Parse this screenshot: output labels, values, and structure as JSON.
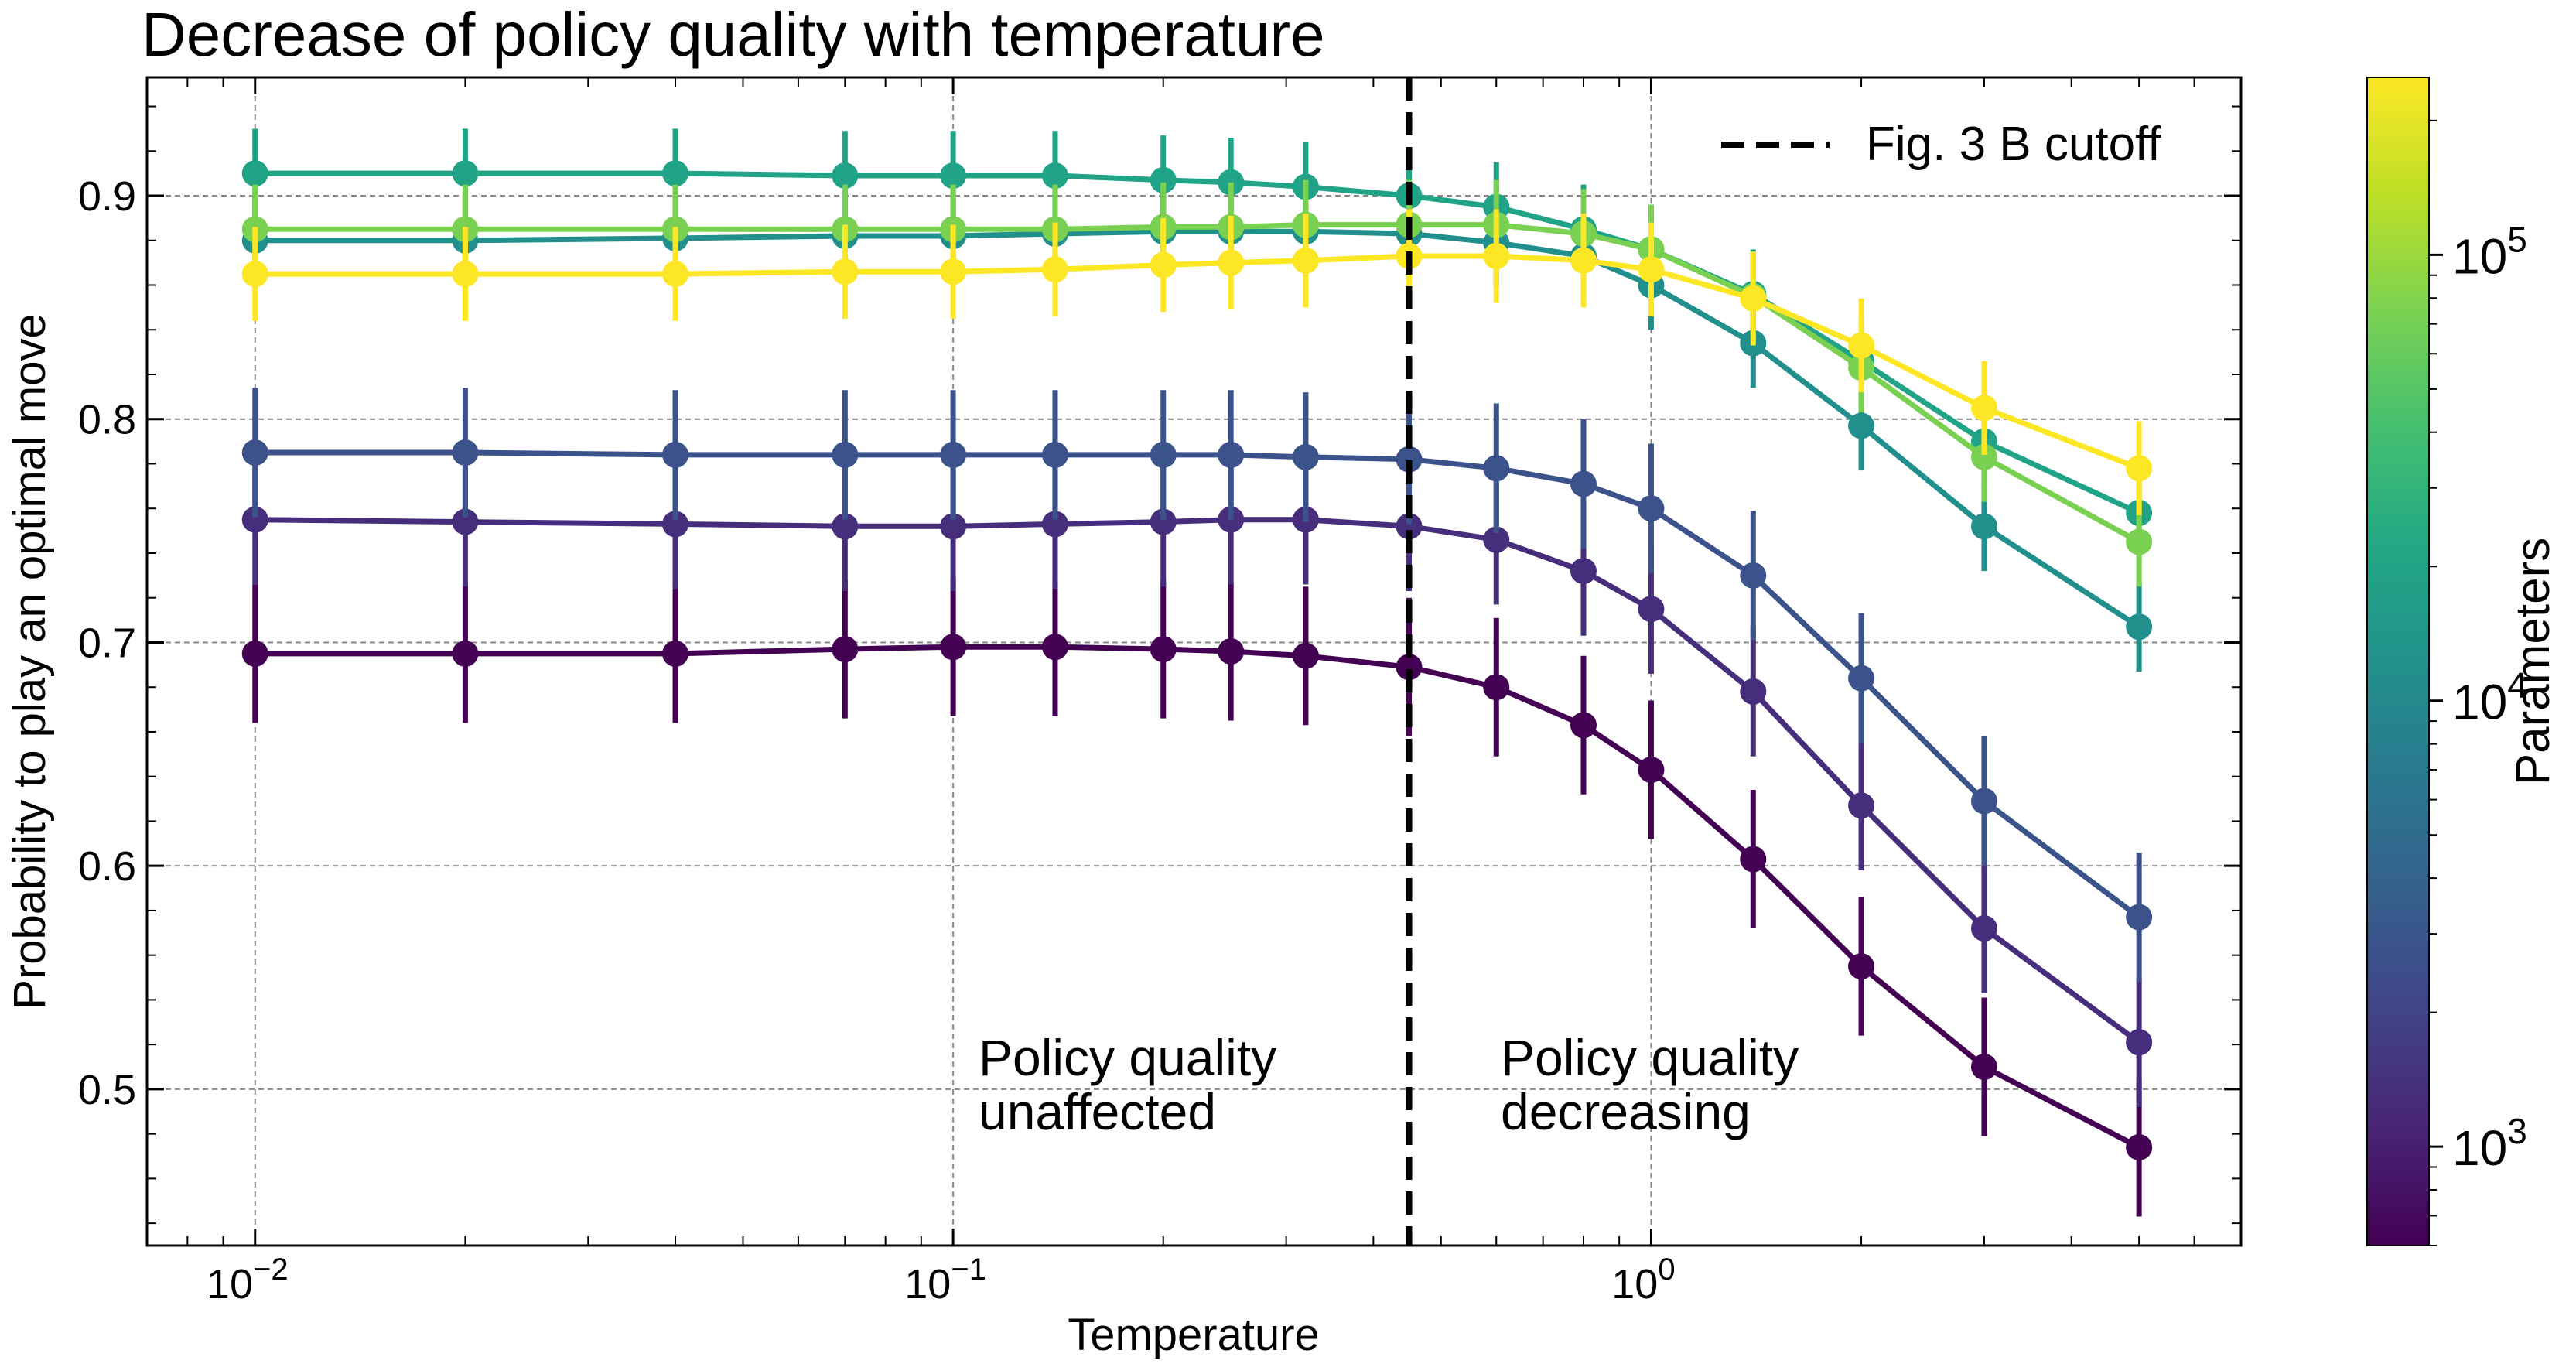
{
  "chart_data": {
    "type": "line",
    "title": "Decrease of policy quality with temperature",
    "xlabel": "Temperature",
    "ylabel": "Probability to play an optimal move",
    "xscale": "log",
    "xlim": [
      0.007,
      7
    ],
    "ylim": [
      0.43,
      0.953
    ],
    "grid": true,
    "x_tick_labels": [
      {
        "value": 0.01,
        "base": "10",
        "exp": "−2"
      },
      {
        "value": 0.1,
        "base": "10",
        "exp": "−1"
      },
      {
        "value": 1,
        "base": "10",
        "exp": "0"
      }
    ],
    "y_ticks": [
      0.5,
      0.6,
      0.7,
      0.8,
      0.9
    ],
    "y_tick_labels": [
      "0.5",
      "0.6",
      "0.7",
      "0.8",
      "0.9"
    ],
    "x": [
      0.01,
      0.02,
      0.04,
      0.07,
      0.1,
      0.14,
      0.2,
      0.25,
      0.32,
      0.45,
      0.6,
      0.8,
      1.0,
      1.4,
      2.0,
      3.0,
      5.0
    ],
    "series": [
      {
        "color": "#440154",
        "params": 600,
        "values": [
          0.695,
          0.695,
          0.695,
          0.697,
          0.698,
          0.698,
          0.697,
          0.696,
          0.694,
          0.689,
          0.68,
          0.663,
          0.643,
          0.603,
          0.555,
          0.51,
          0.474
        ],
        "err": 0.031
      },
      {
        "color": "#472e7c",
        "params": 1000,
        "values": [
          0.755,
          0.754,
          0.753,
          0.752,
          0.752,
          0.753,
          0.754,
          0.755,
          0.755,
          0.752,
          0.746,
          0.732,
          0.715,
          0.678,
          0.627,
          0.572,
          0.521
        ],
        "err": 0.029
      },
      {
        "color": "#3b528b",
        "params": 1700,
        "values": [
          0.785,
          0.785,
          0.784,
          0.784,
          0.784,
          0.784,
          0.784,
          0.784,
          0.783,
          0.782,
          0.778,
          0.771,
          0.76,
          0.73,
          0.684,
          0.629,
          0.577
        ],
        "err": 0.029
      },
      {
        "color": "#21908d",
        "params": 7000,
        "values": [
          0.88,
          0.88,
          0.881,
          0.882,
          0.882,
          0.883,
          0.884,
          0.884,
          0.884,
          0.883,
          0.879,
          0.873,
          0.86,
          0.834,
          0.797,
          0.752,
          0.707
        ],
        "err": 0.02
      },
      {
        "color": "#20a386",
        "params": 17000,
        "values": [
          0.91,
          0.91,
          0.91,
          0.909,
          0.909,
          0.909,
          0.907,
          0.906,
          0.904,
          0.9,
          0.895,
          0.885,
          0.876,
          0.856,
          0.826,
          0.79,
          0.758
        ],
        "err": 0.02
      },
      {
        "color": "#7ad151",
        "params": 70000,
        "values": [
          0.885,
          0.885,
          0.885,
          0.885,
          0.885,
          0.885,
          0.886,
          0.886,
          0.887,
          0.887,
          0.887,
          0.883,
          0.876,
          0.855,
          0.823,
          0.783,
          0.745
        ],
        "err": 0.02
      },
      {
        "color": "#fde725",
        "params": 250000,
        "values": [
          0.865,
          0.865,
          0.865,
          0.866,
          0.866,
          0.867,
          0.869,
          0.87,
          0.871,
          0.873,
          0.873,
          0.871,
          0.867,
          0.854,
          0.833,
          0.805,
          0.778
        ],
        "err": 0.021
      }
    ],
    "cutoff_line": {
      "x": 0.45,
      "label": "Fig. 3 B cutoff",
      "color": "#000000"
    },
    "legend": {
      "position": "top-right",
      "entries": [
        "Fig. 3 B cutoff"
      ]
    },
    "annotations": [
      {
        "lines": [
          "Policy quality",
          "unaffected"
        ]
      },
      {
        "lines": [
          "Policy quality",
          "decreasing"
        ]
      }
    ],
    "colorbar": {
      "label": "Parameters",
      "scale": "log",
      "range": [
        600,
        250000
      ],
      "colormap": "viridis",
      "tick_labels": [
        {
          "value": 1000,
          "base": "10",
          "exp": "3"
        },
        {
          "value": 10000,
          "base": "10",
          "exp": "4"
        },
        {
          "value": 100000,
          "base": "10",
          "exp": "5"
        }
      ]
    }
  }
}
